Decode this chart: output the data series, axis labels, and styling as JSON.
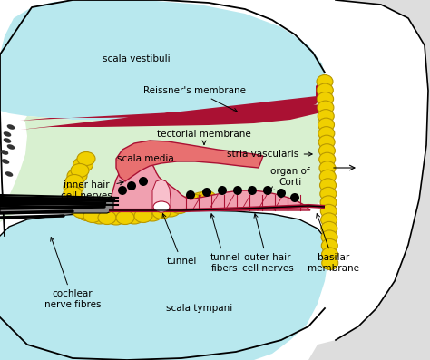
{
  "colors": {
    "white": "#ffffff",
    "light_cyan": "#b8e8ee",
    "green_scala_media": "#d8f0d0",
    "yellow_cells": "#f0d000",
    "yellow_border": "#b89800",
    "pink_corti": "#f0a0b0",
    "salmon_membrane": "#e87070",
    "dark_red": "#aa1133",
    "black": "#000000",
    "off_white": "#f0f0f0",
    "gray_outer": "#dddddd"
  },
  "labels": {
    "scala_vestibuli": "scala vestibuli",
    "reissners_membrane": "Reissner's membrane",
    "scala_media": "scala media",
    "stria_vascularis": "stria vascularis",
    "tectorial_membrane": "tectorial membrane",
    "organ_of_corti": "organ of\nCorti",
    "inner_hair_cell_nerves": "inner hair\ncell nerves",
    "tunnel": "tunnel",
    "tunnel_fibers": "tunnel\nfibers",
    "outer_hair_cell_nerves": "outer hair\ncell nerves",
    "basilar_membrane": "basilar\nmembrane",
    "cochlear_nerve_fibres": "cochlear\nnerve fibres",
    "scala_tympani": "scala tympani"
  }
}
